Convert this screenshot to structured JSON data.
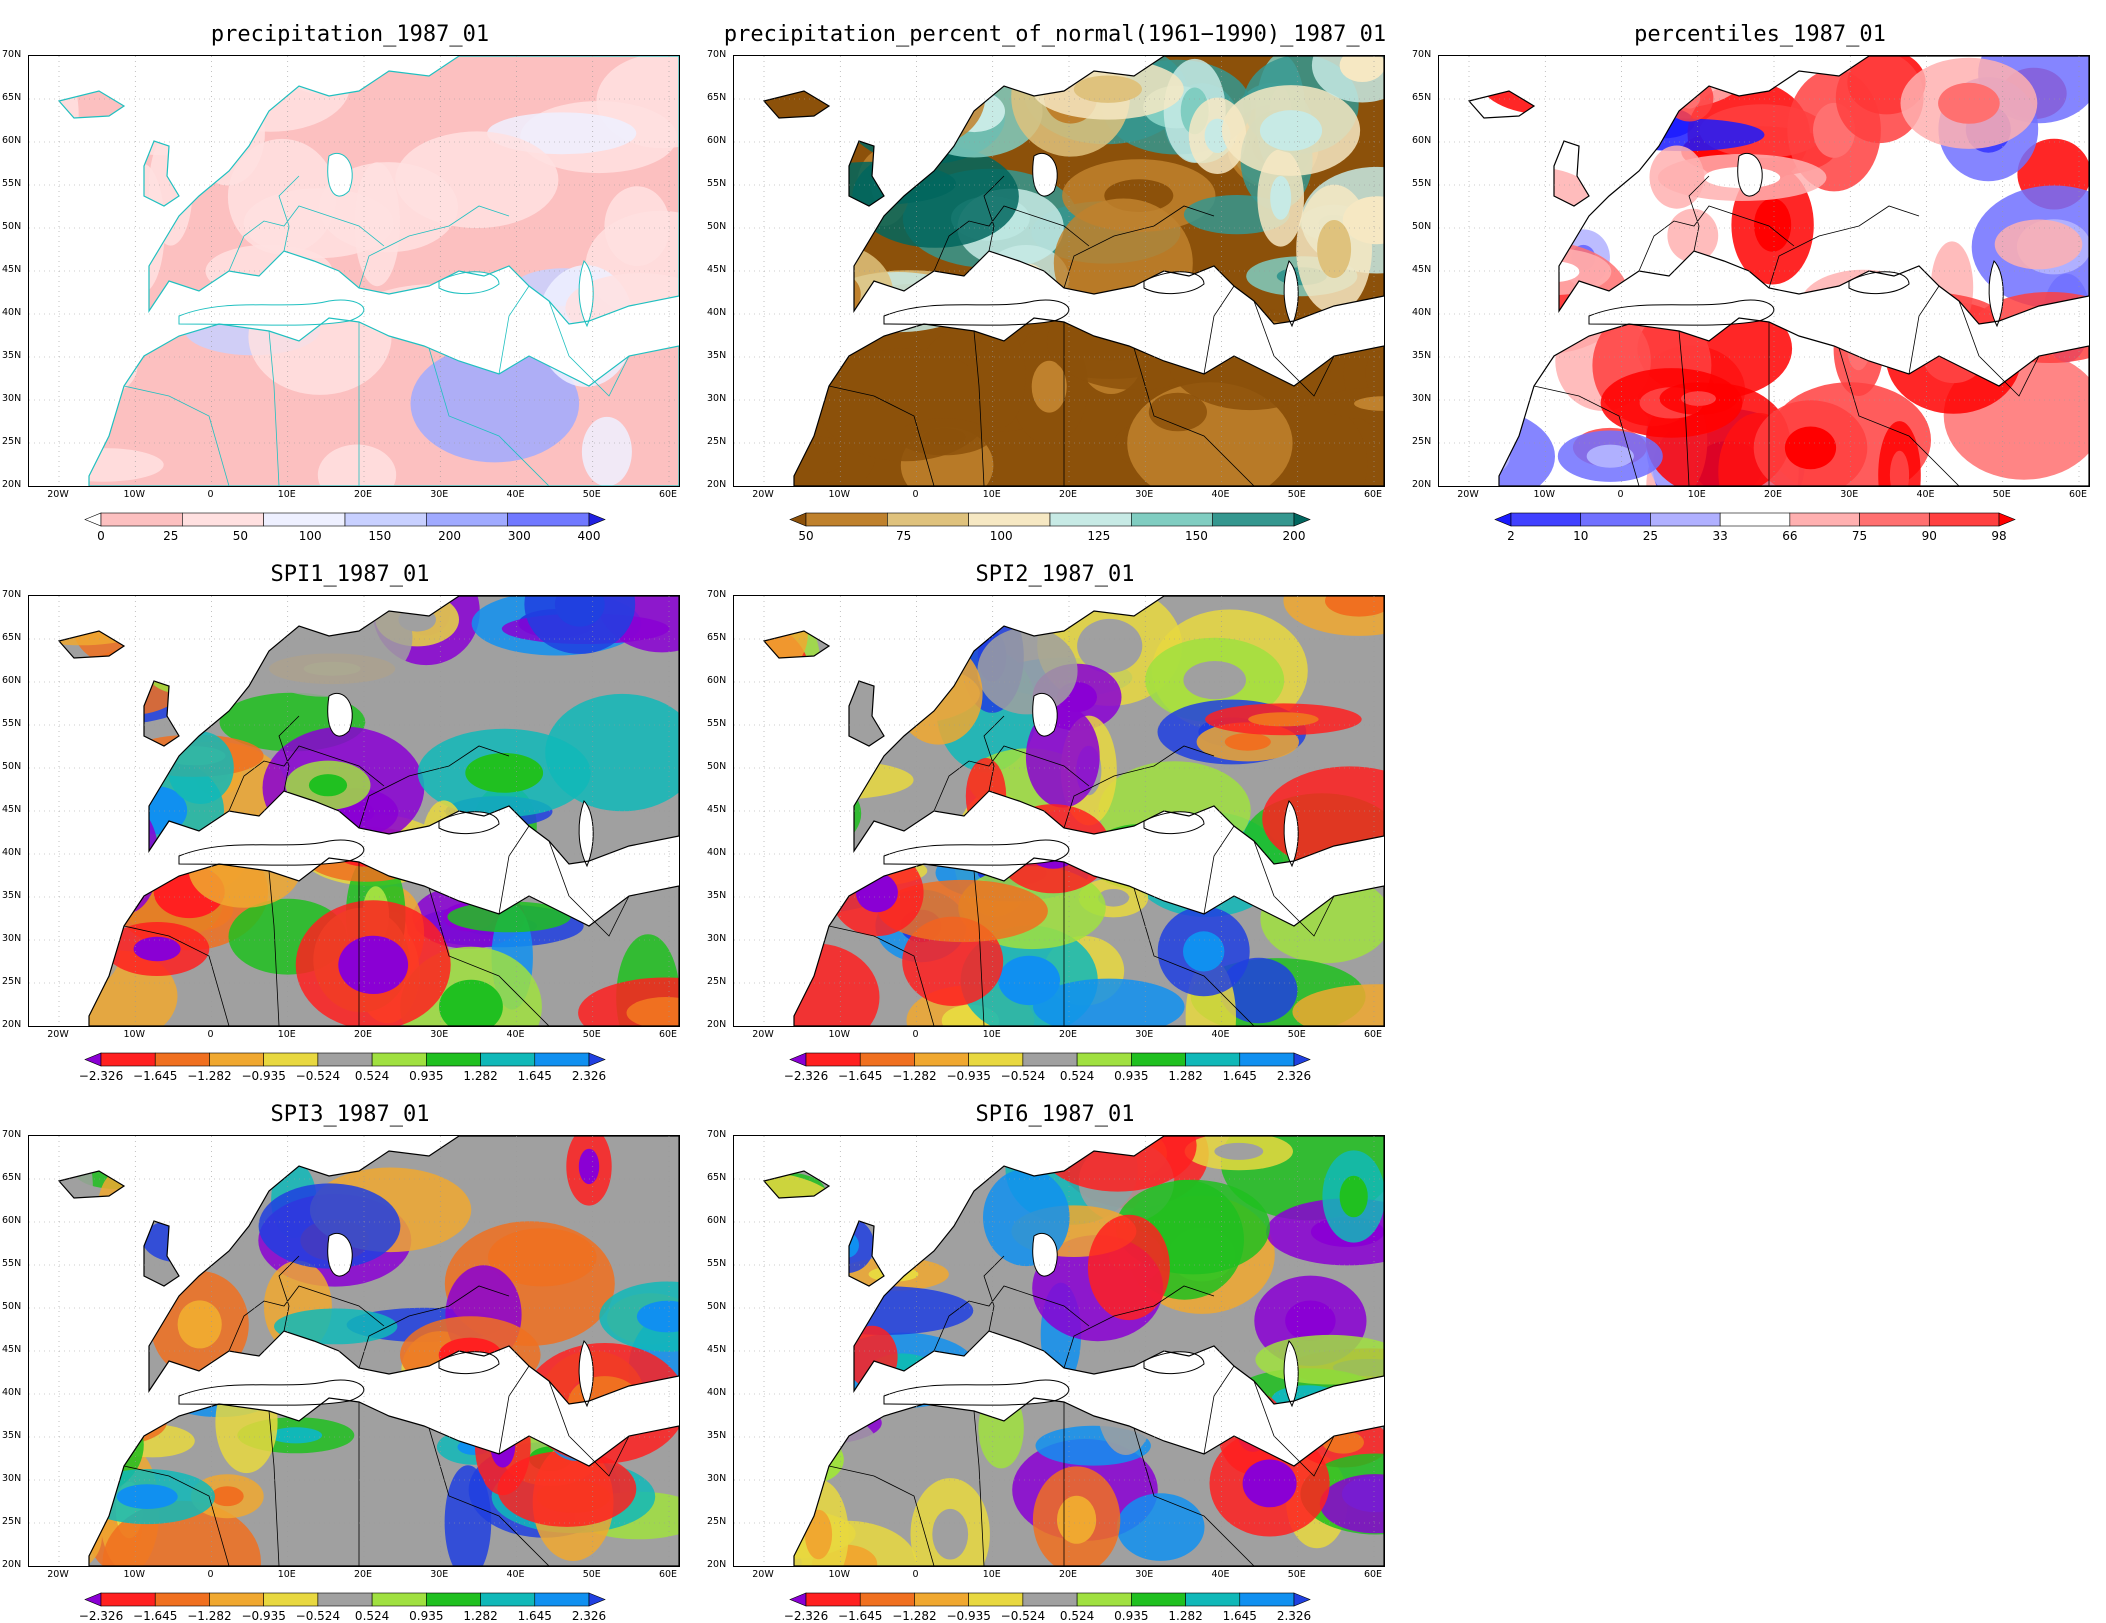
{
  "lat_labels": [
    "70N",
    "65N",
    "60N",
    "55N",
    "50N",
    "45N",
    "40N",
    "35N",
    "30N",
    "25N",
    "20N"
  ],
  "lon_labels": [
    "20W",
    "10W",
    "0",
    "10E",
    "20E",
    "30E",
    "40E",
    "50E",
    "60E"
  ],
  "colors": {
    "precip": [
      "#ffffff",
      "#fcc0c0",
      "#ffe0e0",
      "#eef0ff",
      "#c8d0ff",
      "#a0aaff",
      "#7078ff",
      "#2020e0"
    ],
    "pct": [
      "#8c510a",
      "#bf812d",
      "#dfc27d",
      "#f6e8c3",
      "#c7eae5",
      "#80cdc1",
      "#35978f",
      "#01665e"
    ],
    "perc": [
      "#1a1aff",
      "#4040ff",
      "#7070ff",
      "#b0b0ff",
      "#ffffff",
      "#ffb0b0",
      "#ff7070",
      "#ff4040",
      "#ff0000"
    ],
    "spi": [
      "#8a00d4",
      "#ff2020",
      "#f07020",
      "#f0a830",
      "#e8d840",
      "#a0a0a0",
      "#a0e040",
      "#20c020",
      "#10b8b8",
      "#1090f0",
      "#2040e0"
    ]
  },
  "panels": [
    {
      "id": "precip",
      "title": "precipitation_1987_01",
      "cbar": "precip",
      "cbar_labels": [
        "0",
        "25",
        "50",
        "100",
        "150",
        "200",
        "300",
        "400"
      ]
    },
    {
      "id": "pct",
      "title": "precipitation_percent_of_normal(1961−1990)_1987_01",
      "cbar": "pct",
      "cbar_labels": [
        "50",
        "75",
        "100",
        "125",
        "150",
        "200"
      ]
    },
    {
      "id": "perc",
      "title": "percentiles_1987_01",
      "cbar": "perc",
      "cbar_labels": [
        "2",
        "10",
        "25",
        "33",
        "66",
        "75",
        "90",
        "98"
      ]
    },
    {
      "id": "spi1",
      "title": "SPI1_1987_01",
      "cbar": "spi",
      "cbar_labels": [
        "−2.326",
        "−1.645",
        "−1.282",
        "−0.935",
        "−0.524",
        "0.524",
        "0.935",
        "1.282",
        "1.645",
        "2.326"
      ]
    },
    {
      "id": "spi2",
      "title": "SPI2_1987_01",
      "cbar": "spi",
      "cbar_labels": [
        "−2.326",
        "−1.645",
        "−1.282",
        "−0.935",
        "−0.524",
        "0.524",
        "0.935",
        "1.282",
        "1.645",
        "2.326"
      ]
    },
    {
      "id": "spi3",
      "title": "SPI3_1987_01",
      "cbar": "spi",
      "cbar_labels": [
        "−2.326",
        "−1.645",
        "−1.282",
        "−0.935",
        "−0.524",
        "0.524",
        "0.935",
        "1.282",
        "1.645",
        "2.326"
      ]
    },
    {
      "id": "spi6",
      "title": "SPI6_1987_01",
      "cbar": "spi",
      "cbar_labels": [
        "−2.326",
        "−1.645",
        "−1.282",
        "−0.935",
        "−0.524",
        "0.524",
        "0.935",
        "1.282",
        "1.645",
        "2.326"
      ]
    }
  ]
}
